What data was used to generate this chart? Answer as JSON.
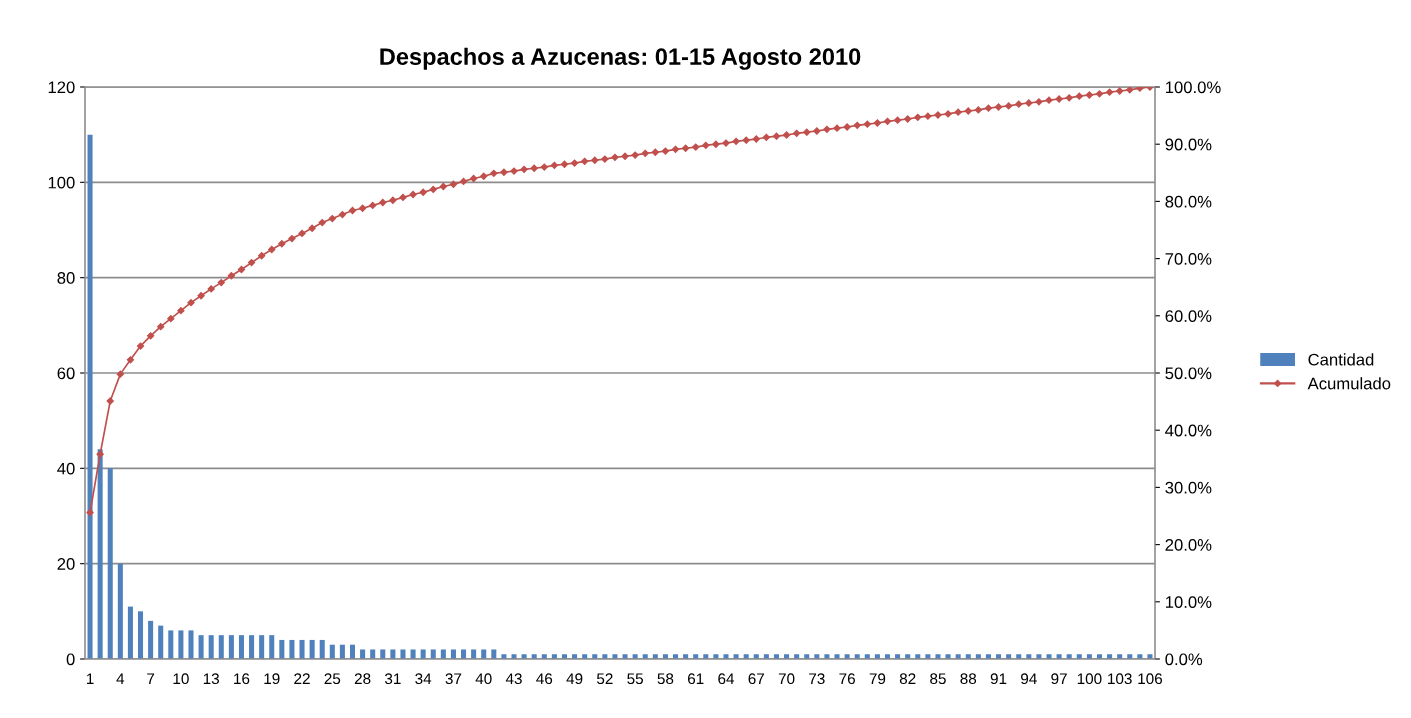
{
  "chart_data": {
    "type": "bar",
    "title": "Despachos a Azucenas: 01-15 Agosto 2010",
    "categories": [
      "1",
      null,
      null,
      "4",
      null,
      null,
      "7",
      null,
      null,
      "10",
      null,
      null,
      "13",
      null,
      null,
      "16",
      null,
      null,
      "19",
      null,
      null,
      "22",
      null,
      null,
      "25",
      null,
      null,
      "28",
      null,
      null,
      "31",
      null,
      null,
      "34",
      null,
      null,
      "37",
      null,
      null,
      "40",
      null,
      null,
      "43",
      null,
      null,
      "46",
      null,
      null,
      "49",
      null,
      null,
      "52",
      null,
      null,
      "55",
      null,
      null,
      "58",
      null,
      null,
      "61",
      null,
      null,
      "64",
      null,
      null,
      "67",
      null,
      null,
      "70",
      null,
      null,
      "73",
      null,
      null,
      "76",
      null,
      null,
      "79",
      null,
      null,
      "82",
      null,
      null,
      "85",
      null,
      null,
      "88",
      null,
      null,
      "91",
      null,
      null,
      "94",
      null,
      null,
      "97",
      null,
      null,
      "100",
      null,
      null,
      "103",
      null,
      null,
      "106"
    ],
    "series": [
      {
        "name": "Cantidad",
        "color": "#4f81bd",
        "values": [
          110,
          44,
          40,
          20,
          11,
          10,
          8,
          7,
          6,
          6,
          6,
          5,
          5,
          5,
          5,
          5,
          5,
          5,
          5,
          4,
          4,
          4,
          4,
          4,
          3,
          3,
          3,
          2,
          2,
          2,
          2,
          2,
          2,
          2,
          2,
          2,
          2,
          2,
          2,
          2,
          2,
          1,
          1,
          1,
          1,
          1,
          1,
          1,
          1,
          1,
          1,
          1,
          1,
          1,
          1,
          1,
          1,
          1,
          1,
          1,
          1,
          1,
          1,
          1,
          1,
          1,
          1,
          1,
          1,
          1,
          1,
          1,
          1,
          1,
          1,
          1,
          1,
          1,
          1,
          1,
          1,
          1,
          1,
          1,
          1,
          1,
          1,
          1,
          1,
          1,
          1,
          1,
          1,
          1,
          1,
          1,
          1,
          1,
          1,
          1,
          1,
          1,
          1,
          1,
          1,
          1
        ]
      },
      {
        "name": "Acumulado",
        "type": "line",
        "axis": "y2",
        "color": "#c0504d",
        "marker": "diamond",
        "line_style": "solid",
        "values": [
          25.6,
          35.8,
          45.1,
          49.8,
          52.3,
          54.7,
          56.5,
          58.1,
          59.5,
          60.9,
          62.3,
          63.5,
          64.7,
          65.8,
          67.0,
          68.1,
          69.3,
          70.5,
          71.6,
          72.6,
          73.5,
          74.4,
          75.3,
          76.3,
          77.0,
          77.7,
          78.4,
          78.8,
          79.3,
          79.8,
          80.2,
          80.7,
          81.2,
          81.6,
          82.1,
          82.6,
          83.0,
          83.5,
          84.0,
          84.4,
          84.9,
          85.1,
          85.3,
          85.6,
          85.8,
          86.0,
          86.3,
          86.5,
          86.7,
          87.0,
          87.2,
          87.4,
          87.7,
          87.9,
          88.1,
          88.4,
          88.6,
          88.8,
          89.1,
          89.3,
          89.5,
          89.8,
          90.0,
          90.2,
          90.5,
          90.7,
          90.9,
          91.2,
          91.4,
          91.6,
          91.9,
          92.1,
          92.3,
          92.6,
          92.8,
          93.0,
          93.3,
          93.5,
          93.7,
          94.0,
          94.2,
          94.4,
          94.7,
          94.9,
          95.1,
          95.3,
          95.6,
          95.8,
          96.0,
          96.3,
          96.5,
          96.7,
          97.0,
          97.2,
          97.4,
          97.7,
          97.9,
          98.1,
          98.4,
          98.6,
          98.8,
          99.1,
          99.3,
          99.5,
          99.8,
          100.0
        ]
      }
    ],
    "ylim": [
      0,
      120
    ],
    "yticks": [
      0,
      20,
      40,
      60,
      80,
      100,
      120
    ],
    "y2lim": [
      0,
      100
    ],
    "y2ticks": [
      {
        "value": 0,
        "label": "0.0%"
      },
      {
        "value": 10,
        "label": "10.0%"
      },
      {
        "value": 20,
        "label": "20.0%"
      },
      {
        "value": 30,
        "label": "30.0%"
      },
      {
        "value": 40,
        "label": "40.0%"
      },
      {
        "value": 50,
        "label": "50.0%"
      },
      {
        "value": 60,
        "label": "60.0%"
      },
      {
        "value": 70,
        "label": "70.0%"
      },
      {
        "value": 80,
        "label": "80.0%"
      },
      {
        "value": 90,
        "label": "90.0%"
      },
      {
        "value": 100,
        "label": "100.0%"
      }
    ],
    "grid": "y",
    "legend": "right"
  }
}
